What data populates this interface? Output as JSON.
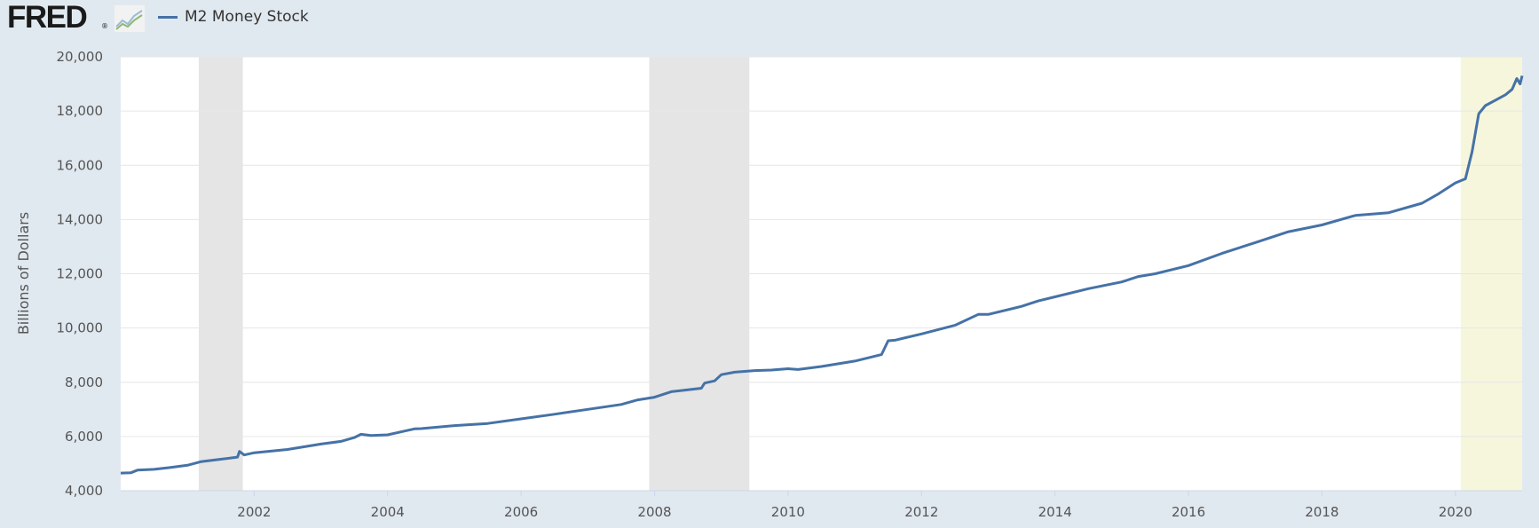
{
  "header": {
    "logo_text": "FRED",
    "logo_mark": "®",
    "logo_icon": "line-graph-icon",
    "legend": [
      {
        "name": "M2 Money Stock",
        "color": "#4572a7"
      }
    ]
  },
  "colors": {
    "background": "#e1e9f0",
    "plot_bg": "#ffffff",
    "grid": "#e6e6e6",
    "series": "#4572a7",
    "recession": "#e5e5e5",
    "highlight": "#f6f6dc"
  },
  "chart_data": {
    "type": "line",
    "title": "",
    "xlabel": "",
    "ylabel": "Billions of Dollars",
    "xlim": [
      2000.0,
      2021.0
    ],
    "ylim": [
      4000,
      20000
    ],
    "grid": "horizontal",
    "legend_position": "top-left",
    "x_ticks": [
      {
        "value": 2002,
        "label": "2002"
      },
      {
        "value": 2004,
        "label": "2004"
      },
      {
        "value": 2006,
        "label": "2006"
      },
      {
        "value": 2008,
        "label": "2008"
      },
      {
        "value": 2010,
        "label": "2010"
      },
      {
        "value": 2012,
        "label": "2012"
      },
      {
        "value": 2014,
        "label": "2014"
      },
      {
        "value": 2016,
        "label": "2016"
      },
      {
        "value": 2018,
        "label": "2018"
      },
      {
        "value": 2020,
        "label": "2020"
      }
    ],
    "y_ticks": [
      {
        "value": 4000,
        "label": "4,000"
      },
      {
        "value": 6000,
        "label": "6,000"
      },
      {
        "value": 8000,
        "label": "8,000"
      },
      {
        "value": 10000,
        "label": "10,000"
      },
      {
        "value": 12000,
        "label": "12,000"
      },
      {
        "value": 14000,
        "label": "14,000"
      },
      {
        "value": 16000,
        "label": "16,000"
      },
      {
        "value": 18000,
        "label": "18,000"
      },
      {
        "value": 20000,
        "label": "20,000"
      }
    ],
    "shaded_regions": [
      {
        "start": 2001.17,
        "end": 2001.83,
        "kind": "recession"
      },
      {
        "start": 2007.92,
        "end": 2009.42,
        "kind": "recession"
      },
      {
        "start": 2020.08,
        "end": 2021.0,
        "kind": "highlight"
      }
    ],
    "series": [
      {
        "name": "M2 Money Stock",
        "color": "#4572a7",
        "x": [
          2000.0,
          2000.15,
          2000.25,
          2000.5,
          2000.75,
          2001.0,
          2001.2,
          2001.5,
          2001.75,
          2001.78,
          2001.85,
          2002.0,
          2002.5,
          2003.0,
          2003.3,
          2003.5,
          2003.6,
          2003.75,
          2004.0,
          2004.25,
          2004.4,
          2004.5,
          2005.0,
          2005.5,
          2006.0,
          2006.5,
          2007.0,
          2007.5,
          2007.75,
          2008.0,
          2008.25,
          2008.5,
          2008.7,
          2008.75,
          2008.9,
          2009.0,
          2009.2,
          2009.5,
          2009.75,
          2010.0,
          2010.15,
          2010.5,
          2011.0,
          2011.4,
          2011.5,
          2011.6,
          2012.0,
          2012.5,
          2012.85,
          2013.0,
          2013.5,
          2013.75,
          2014.0,
          2014.5,
          2015.0,
          2015.25,
          2015.5,
          2016.0,
          2016.5,
          2017.0,
          2017.5,
          2018.0,
          2018.5,
          2019.0,
          2019.5,
          2019.75,
          2020.0,
          2020.15,
          2020.25,
          2020.35,
          2020.45,
          2020.6,
          2020.75,
          2020.85,
          2020.92,
          2020.97,
          2021.0
        ],
        "y": [
          4650,
          4660,
          4760,
          4790,
          4860,
          4940,
          5070,
          5160,
          5240,
          5450,
          5320,
          5400,
          5520,
          5720,
          5820,
          5960,
          6080,
          6040,
          6060,
          6200,
          6280,
          6290,
          6400,
          6480,
          6650,
          6820,
          7000,
          7180,
          7350,
          7450,
          7650,
          7720,
          7780,
          7970,
          8050,
          8280,
          8370,
          8430,
          8450,
          8500,
          8470,
          8580,
          8780,
          9020,
          9530,
          9550,
          9780,
          10100,
          10500,
          10500,
          10800,
          11000,
          11150,
          11450,
          11700,
          11900,
          12000,
          12300,
          12750,
          13150,
          13550,
          13800,
          14150,
          14250,
          14600,
          14950,
          15350,
          15500,
          16500,
          17900,
          18200,
          18400,
          18600,
          18800,
          19200,
          19000,
          19300
        ]
      }
    ]
  }
}
